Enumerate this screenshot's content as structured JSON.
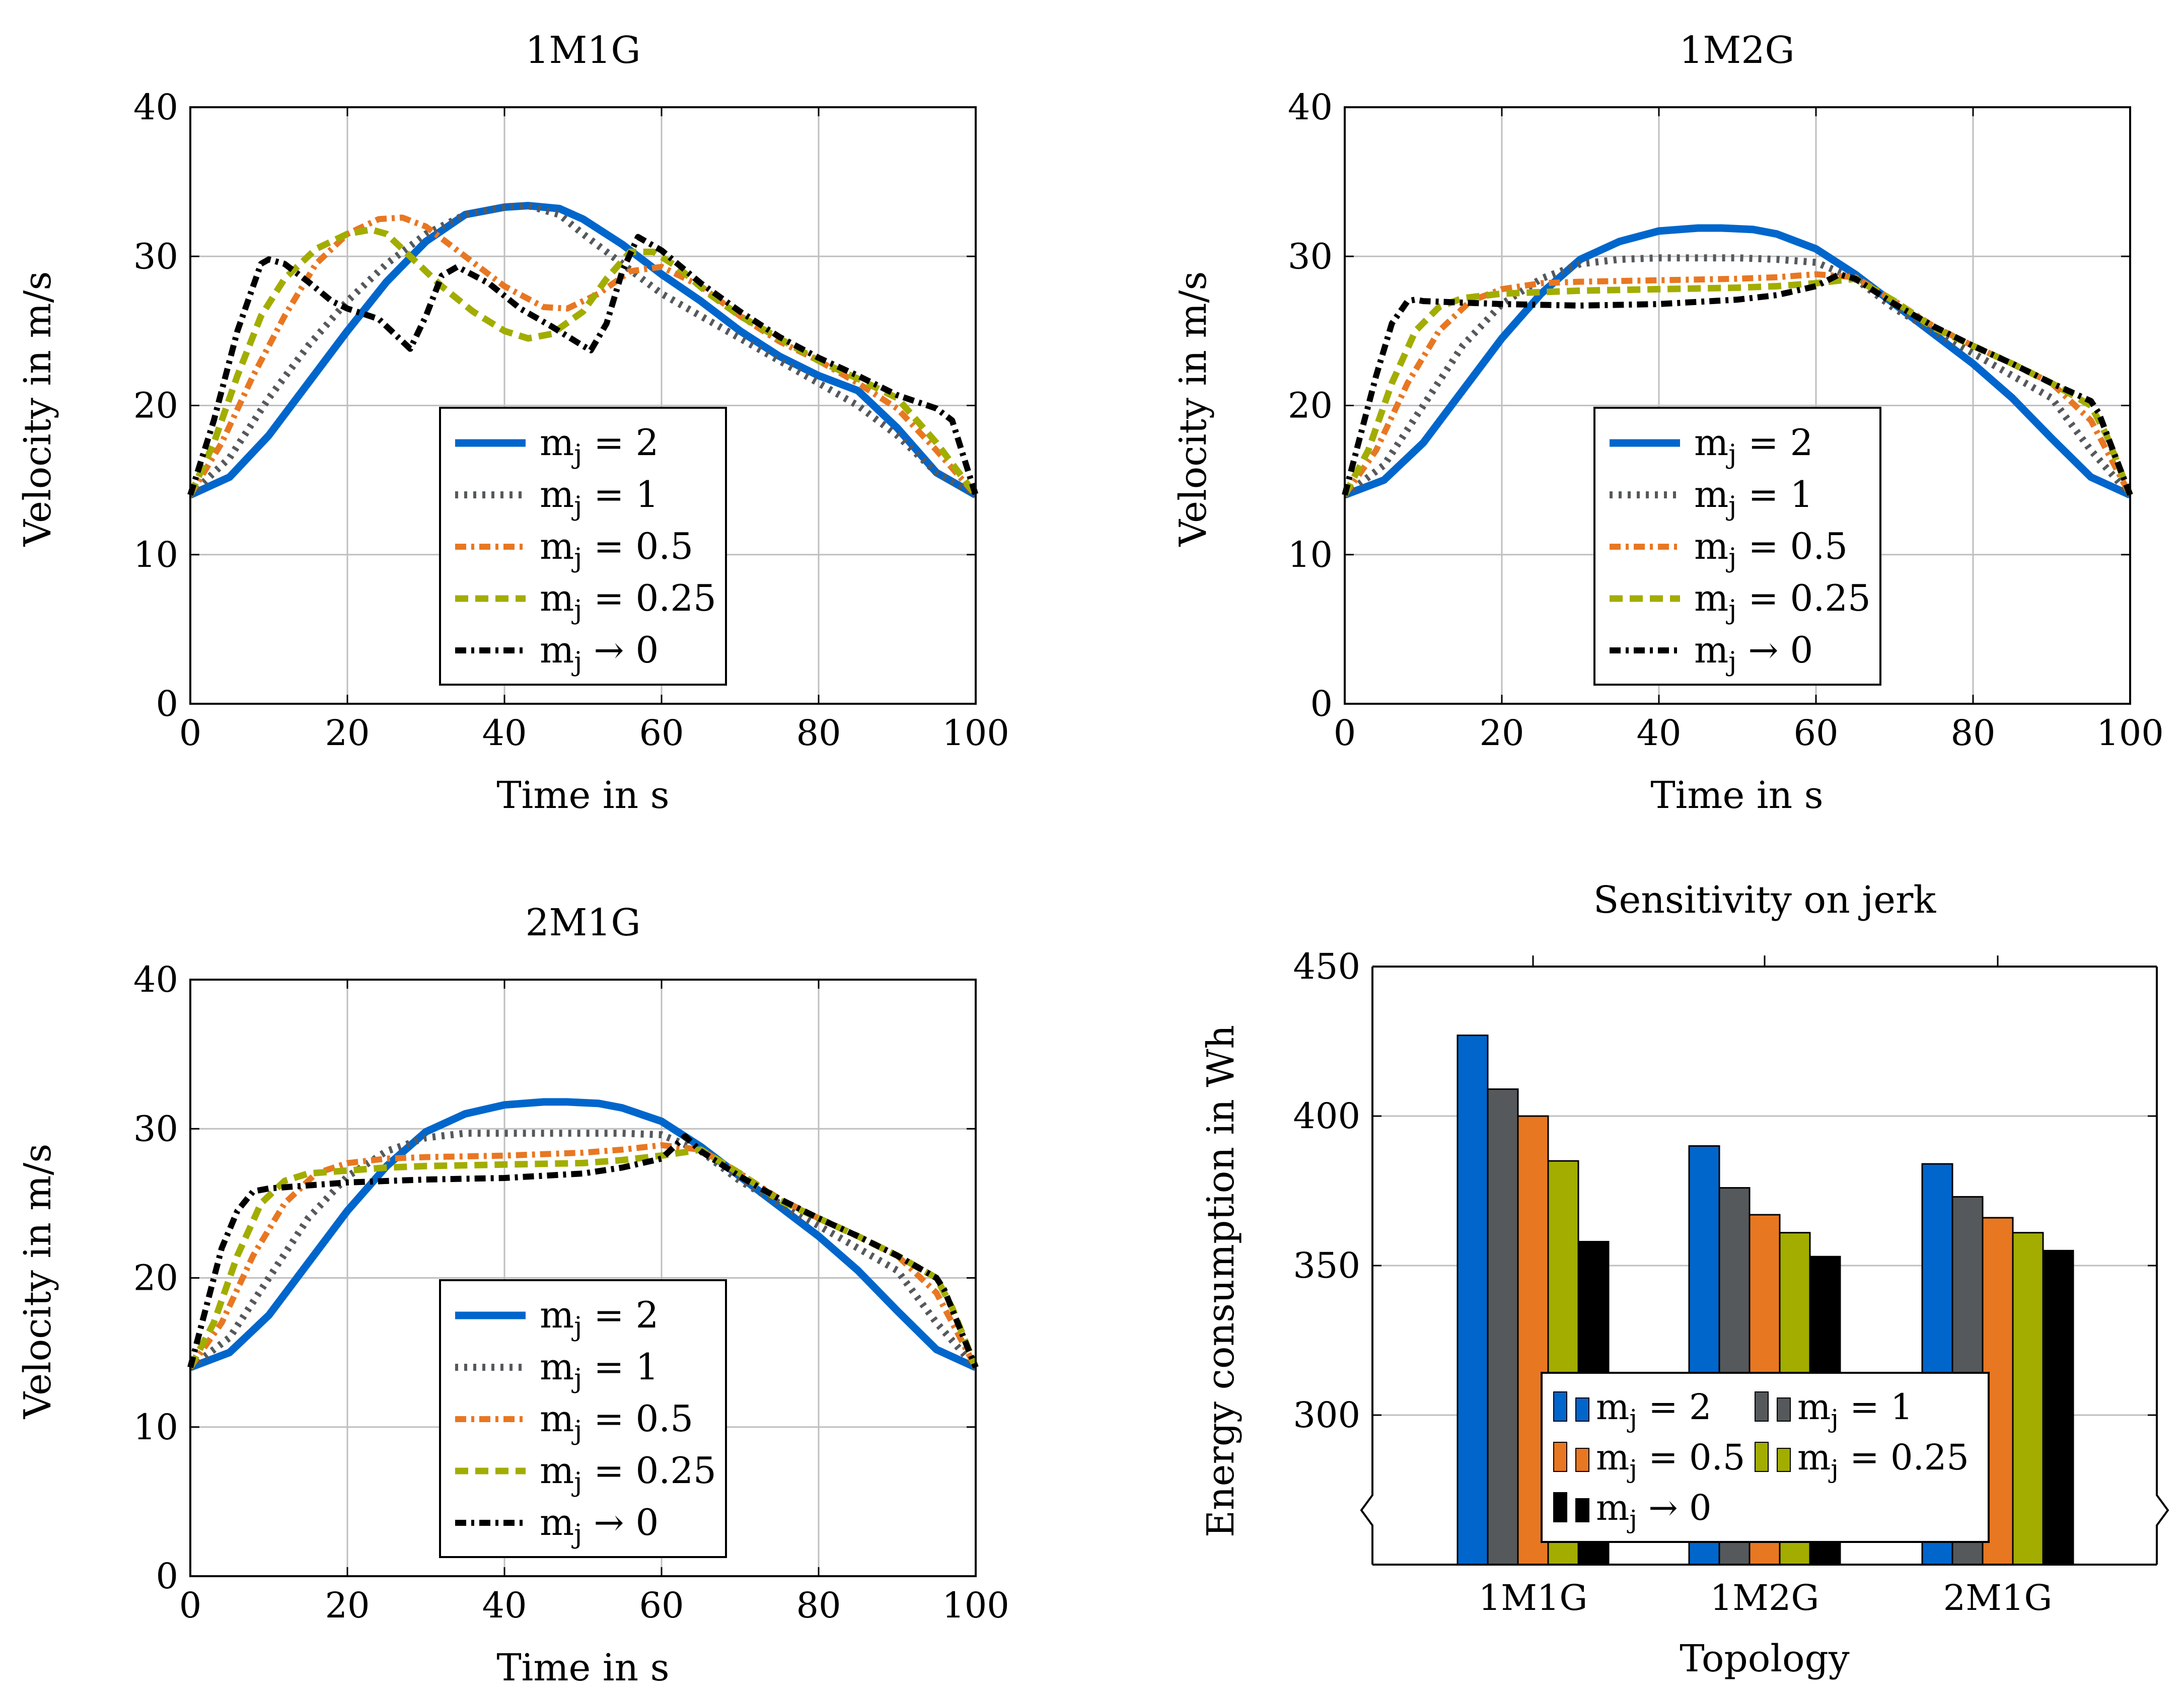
{
  "colors": {
    "blue": "#0066cc",
    "gray": "#55595c",
    "orange": "#e87722",
    "olive": "#a2ad00",
    "black": "#000000",
    "grid": "#bfbfbf"
  },
  "chart_data": [
    {
      "type": "line",
      "title": "1M1G",
      "xlabel": "Time in s",
      "ylabel": "Velocity in m/s",
      "xlim": [
        0,
        100
      ],
      "ylim": [
        0,
        40
      ],
      "xticks": [
        0,
        20,
        40,
        60,
        80,
        100
      ],
      "yticks": [
        0,
        10,
        20,
        30,
        40
      ],
      "grid": true,
      "legend_position": "bottom-center",
      "series": [
        {
          "name": "m_j = 2",
          "label_base": "m",
          "label_sub": "j",
          "label_rest": " = 2",
          "color": "blue",
          "style": "solid",
          "x": [
            0,
            5,
            10,
            15,
            20,
            25,
            30,
            35,
            40,
            43,
            47,
            50,
            55,
            60,
            65,
            70,
            75,
            80,
            85,
            90,
            95,
            100
          ],
          "y": [
            14,
            15.2,
            18,
            21.5,
            25,
            28.3,
            31,
            32.8,
            33.3,
            33.4,
            33.2,
            32.5,
            30.8,
            28.8,
            27,
            25,
            23.3,
            22,
            21,
            18.5,
            15.5,
            14
          ]
        },
        {
          "name": "m_j = 1",
          "label_base": "m",
          "label_sub": "j",
          "label_rest": " = 1",
          "color": "gray",
          "style": "dotted",
          "x": [
            0,
            5,
            10,
            15,
            20,
            25,
            30,
            35,
            40,
            43,
            47,
            50,
            55,
            60,
            65,
            70,
            75,
            80,
            85,
            90,
            95,
            100
          ],
          "y": [
            14,
            16.5,
            20.5,
            24,
            27,
            29.5,
            31.5,
            32.8,
            33.3,
            33.4,
            32.8,
            31.5,
            29.5,
            27.5,
            26,
            24.5,
            23,
            21.5,
            20,
            18,
            15.5,
            14
          ]
        },
        {
          "name": "m_j = 0.5",
          "label_base": "m",
          "label_sub": "j",
          "label_rest": " = 0.5",
          "color": "orange",
          "style": "dashdot",
          "x": [
            0,
            4,
            8,
            12,
            16,
            20,
            24,
            27,
            30,
            35,
            40,
            45,
            48,
            52,
            56,
            60,
            65,
            70,
            75,
            80,
            85,
            90,
            95,
            100
          ],
          "y": [
            14,
            17.5,
            22,
            26,
            29.5,
            31.5,
            32.5,
            32.6,
            32,
            30,
            28,
            26.6,
            26.5,
            27.5,
            29,
            29.3,
            28,
            26,
            24.3,
            23,
            21.5,
            19.8,
            17,
            14
          ]
        },
        {
          "name": "m_j = 0.25",
          "label_base": "m",
          "label_sub": "j",
          "label_rest": " = 0.25",
          "color": "olive",
          "style": "dashed",
          "x": [
            0,
            3,
            6,
            9,
            12,
            16,
            20,
            23,
            25,
            28,
            32,
            36,
            40,
            43,
            46,
            50,
            53,
            56,
            59,
            62,
            66,
            70,
            75,
            80,
            85,
            90,
            95,
            100
          ],
          "y": [
            14,
            17.5,
            22,
            26,
            28.5,
            30.5,
            31.5,
            31.8,
            31.5,
            30,
            28,
            26.3,
            25,
            24.5,
            24.8,
            26.3,
            28.5,
            30.3,
            30.3,
            29.3,
            27.5,
            26,
            24.5,
            23,
            21.8,
            20.5,
            17.5,
            14
          ]
        },
        {
          "name": "m_j → 0",
          "label_base": "m",
          "label_sub": "j",
          "label_rest": " → 0",
          "color": "black",
          "style": "dashdot",
          "x": [
            0,
            3,
            6,
            9,
            10,
            12,
            15,
            18,
            20,
            24,
            27,
            28,
            30,
            32,
            34,
            38,
            42,
            46,
            50,
            51,
            53,
            55,
            57,
            60,
            65,
            70,
            75,
            80,
            85,
            90,
            95,
            97,
            100
          ],
          "y": [
            14,
            19,
            25,
            29.5,
            29.8,
            29.5,
            28.3,
            27,
            26.5,
            25.8,
            24.3,
            23.8,
            26,
            28.7,
            29.3,
            28.2,
            26.5,
            25.3,
            24,
            23.7,
            25.5,
            29,
            31.3,
            30.4,
            28.2,
            26.3,
            24.6,
            23.2,
            22,
            20.7,
            19.8,
            19,
            14
          ]
        }
      ]
    },
    {
      "type": "line",
      "title": "1M2G",
      "xlabel": "Time in s",
      "ylabel": "Velocity in m/s",
      "xlim": [
        0,
        100
      ],
      "ylim": [
        0,
        40
      ],
      "xticks": [
        0,
        20,
        40,
        60,
        80,
        100
      ],
      "yticks": [
        0,
        10,
        20,
        30,
        40
      ],
      "grid": true,
      "legend_position": "bottom-center",
      "series": [
        {
          "name": "m_j = 2",
          "label_base": "m",
          "label_sub": "j",
          "label_rest": " = 2",
          "color": "blue",
          "style": "solid",
          "x": [
            0,
            5,
            10,
            15,
            20,
            25,
            30,
            35,
            40,
            45,
            48,
            52,
            55,
            60,
            65,
            70,
            75,
            80,
            85,
            90,
            95,
            100
          ],
          "y": [
            14,
            15,
            17.5,
            21,
            24.5,
            27.5,
            29.8,
            31,
            31.7,
            31.9,
            31.9,
            31.8,
            31.5,
            30.5,
            28.8,
            26.8,
            24.8,
            22.8,
            20.5,
            17.8,
            15.2,
            14
          ]
        },
        {
          "name": "m_j = 1",
          "label_base": "m",
          "label_sub": "j",
          "label_rest": " = 1",
          "color": "gray",
          "style": "dotted",
          "x": [
            0,
            5,
            10,
            15,
            20,
            25,
            30,
            35,
            40,
            45,
            50,
            55,
            60,
            65,
            70,
            75,
            80,
            85,
            90,
            95,
            100
          ],
          "y": [
            14,
            16,
            20,
            24,
            26.8,
            28.5,
            29.5,
            29.8,
            29.9,
            29.9,
            29.9,
            29.8,
            29.6,
            28.5,
            26.5,
            25,
            23.5,
            22,
            20.5,
            17,
            14
          ]
        },
        {
          "name": "m_j = 0.5",
          "label_base": "m",
          "label_sub": "j",
          "label_rest": " = 0.5",
          "color": "orange",
          "style": "dashdot",
          "x": [
            0,
            4,
            8,
            12,
            16,
            20,
            25,
            30,
            40,
            50,
            55,
            60,
            65,
            70,
            75,
            80,
            85,
            90,
            95,
            100
          ],
          "y": [
            14,
            17,
            21.5,
            25,
            27,
            27.8,
            28.2,
            28.3,
            28.4,
            28.5,
            28.6,
            28.8,
            28.6,
            27,
            25.3,
            24,
            22.8,
            21.5,
            19,
            14
          ]
        },
        {
          "name": "m_j = 0.25",
          "label_base": "m",
          "label_sub": "j",
          "label_rest": " = 0.25",
          "color": "olive",
          "style": "dashed",
          "x": [
            0,
            3,
            6,
            9,
            12,
            15,
            20,
            25,
            30,
            40,
            50,
            55,
            60,
            65,
            70,
            75,
            80,
            85,
            90,
            95,
            97,
            100
          ],
          "y": [
            14,
            17,
            21.5,
            25,
            26.6,
            27.2,
            27.5,
            27.6,
            27.7,
            27.8,
            27.9,
            28,
            28.2,
            28.5,
            27,
            25.2,
            24,
            22.8,
            21.5,
            20,
            18,
            14
          ]
        },
        {
          "name": "m_j → 0",
          "label_base": "m",
          "label_sub": "j",
          "label_rest": " → 0",
          "color": "black",
          "style": "dashdot",
          "x": [
            0,
            2,
            4,
            6,
            8,
            9,
            10,
            15,
            20,
            30,
            40,
            50,
            55,
            60,
            63,
            65,
            70,
            75,
            80,
            85,
            90,
            95,
            96,
            100
          ],
          "y": [
            14,
            18,
            22,
            25.5,
            27,
            27.1,
            27,
            26.9,
            26.8,
            26.7,
            26.8,
            27.1,
            27.4,
            28,
            28.8,
            28.5,
            26.8,
            25.3,
            24,
            22.8,
            21.5,
            20.3,
            19.5,
            14
          ]
        }
      ]
    },
    {
      "type": "line",
      "title": "2M1G",
      "xlabel": "Time in s",
      "ylabel": "Velocity in m/s",
      "xlim": [
        0,
        100
      ],
      "ylim": [
        0,
        40
      ],
      "xticks": [
        0,
        20,
        40,
        60,
        80,
        100
      ],
      "yticks": [
        0,
        10,
        20,
        30,
        40
      ],
      "grid": true,
      "legend_position": "bottom-center",
      "series": [
        {
          "name": "m_j = 2",
          "label_base": "m",
          "label_sub": "j",
          "label_rest": " = 2",
          "color": "blue",
          "style": "solid",
          "x": [
            0,
            5,
            10,
            15,
            20,
            25,
            30,
            35,
            40,
            45,
            48,
            52,
            55,
            60,
            65,
            70,
            75,
            80,
            85,
            90,
            95,
            100
          ],
          "y": [
            14,
            15,
            17.5,
            21,
            24.5,
            27.5,
            29.8,
            31,
            31.6,
            31.8,
            31.8,
            31.7,
            31.4,
            30.5,
            28.8,
            26.8,
            24.8,
            22.8,
            20.5,
            17.8,
            15.2,
            14
          ]
        },
        {
          "name": "m_j = 1",
          "label_base": "m",
          "label_sub": "j",
          "label_rest": " = 1",
          "color": "gray",
          "style": "dotted",
          "x": [
            0,
            5,
            10,
            15,
            20,
            25,
            30,
            35,
            40,
            45,
            50,
            55,
            60,
            65,
            70,
            75,
            80,
            85,
            90,
            95,
            100
          ],
          "y": [
            14,
            16,
            20,
            24,
            26.8,
            28.5,
            29.4,
            29.7,
            29.7,
            29.7,
            29.7,
            29.7,
            29.6,
            28.5,
            26.5,
            25,
            23.5,
            22,
            20.5,
            17,
            14
          ]
        },
        {
          "name": "m_j = 0.5",
          "label_base": "m",
          "label_sub": "j",
          "label_rest": " = 0.5",
          "color": "orange",
          "style": "dashdot",
          "x": [
            0,
            4,
            8,
            12,
            16,
            20,
            25,
            30,
            40,
            50,
            55,
            60,
            65,
            70,
            75,
            80,
            85,
            90,
            95,
            100
          ],
          "y": [
            14,
            17,
            21.5,
            25,
            27,
            27.7,
            28,
            28.1,
            28.2,
            28.4,
            28.6,
            28.9,
            28.6,
            27,
            25.3,
            24,
            22.8,
            21.5,
            19,
            14
          ]
        },
        {
          "name": "m_j = 0.25",
          "label_base": "m",
          "label_sub": "j",
          "label_rest": " = 0.25",
          "color": "olive",
          "style": "dashed",
          "x": [
            0,
            3,
            6,
            9,
            12,
            15,
            20,
            25,
            30,
            40,
            50,
            55,
            60,
            65,
            70,
            75,
            80,
            85,
            90,
            95,
            97,
            100
          ],
          "y": [
            14,
            17,
            21.5,
            25,
            26.5,
            27,
            27.2,
            27.4,
            27.5,
            27.6,
            27.7,
            27.9,
            28.2,
            28.6,
            27,
            25.2,
            24,
            22.8,
            21.5,
            20,
            18,
            14
          ]
        },
        {
          "name": "m_j → 0",
          "label_base": "m",
          "label_sub": "j",
          "label_rest": " → 0",
          "color": "black",
          "style": "dashdot",
          "x": [
            0,
            2,
            4,
            6,
            8,
            10,
            15,
            20,
            30,
            40,
            50,
            55,
            60,
            63,
            65,
            70,
            75,
            80,
            85,
            90,
            95,
            96,
            100
          ],
          "y": [
            14,
            18,
            22,
            24.5,
            25.8,
            26,
            26.2,
            26.4,
            26.6,
            26.7,
            27,
            27.4,
            28,
            29.5,
            28.5,
            26.8,
            25.3,
            24,
            22.8,
            21.5,
            20,
            19.2,
            14
          ]
        }
      ]
    },
    {
      "type": "bar",
      "title": "Sensitivity on jerk",
      "xlabel": "Topology",
      "ylabel": "Energy consumption in Wh",
      "categories": [
        "1M1G",
        "1M2G",
        "2M1G"
      ],
      "ylim": [
        250,
        450
      ],
      "axis_break": true,
      "yticks": [
        300,
        350,
        400,
        450
      ],
      "grid": true,
      "legend_position": "bottom-center",
      "series": [
        {
          "name": "m_j = 2",
          "label_base": "m",
          "label_sub": "j",
          "label_rest": " = 2",
          "color": "blue",
          "values": [
            427,
            390,
            384
          ]
        },
        {
          "name": "m_j = 1",
          "label_base": "m",
          "label_sub": "j",
          "label_rest": " = 1",
          "color": "gray",
          "values": [
            409,
            376,
            373
          ]
        },
        {
          "name": "m_j = 0.5",
          "label_base": "m",
          "label_sub": "j",
          "label_rest": " = 0.5",
          "color": "orange",
          "values": [
            400,
            367,
            366
          ]
        },
        {
          "name": "m_j = 0.25",
          "label_base": "m",
          "label_sub": "j",
          "label_rest": " = 0.25",
          "color": "olive",
          "values": [
            385,
            361,
            361
          ]
        },
        {
          "name": "m_j → 0",
          "label_base": "m",
          "label_sub": "j",
          "label_rest": " → 0",
          "color": "black",
          "values": [
            358,
            353,
            355
          ]
        }
      ]
    }
  ]
}
